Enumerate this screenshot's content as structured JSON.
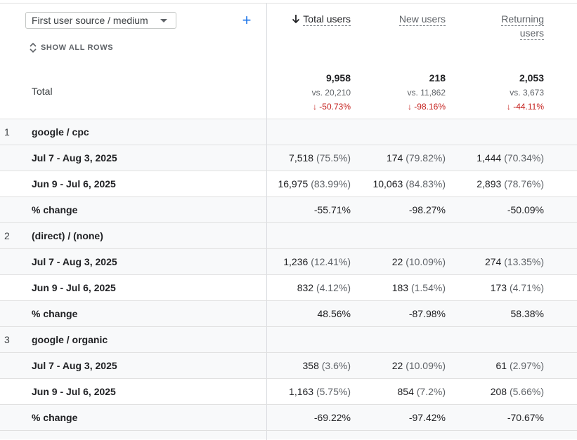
{
  "dimension": {
    "selected": "First user source / medium",
    "add_icon": "plus-icon"
  },
  "show_all_rows": "SHOW ALL ROWS",
  "columns": [
    {
      "key": "total_users",
      "label_lines": [
        "Total users"
      ],
      "sorted": true
    },
    {
      "key": "new_users",
      "label_lines": [
        "New users"
      ],
      "sorted": false
    },
    {
      "key": "returning_users",
      "label_lines": [
        "Returning",
        "users"
      ],
      "sorted": false
    }
  ],
  "totals": {
    "label": "Total",
    "values": [
      {
        "value": "9,958",
        "vs": "vs. 20,210",
        "change": "↓ -50.73%"
      },
      {
        "value": "218",
        "vs": "vs. 11,862",
        "change": "↓ -98.16%"
      },
      {
        "value": "2,053",
        "vs": "vs. 3,673",
        "change": "↓ -44.11%"
      }
    ]
  },
  "groups": [
    {
      "index": "1",
      "name": "google / cpc",
      "rows": [
        {
          "label": "Jul 7 - Aug 3, 2025",
          "cells": [
            [
              "7,518",
              "(75.5%)"
            ],
            [
              "174",
              "(79.82%)"
            ],
            [
              "1,444",
              "(70.34%)"
            ]
          ]
        },
        {
          "label": "Jun 9 - Jul 6, 2025",
          "cells": [
            [
              "16,975",
              "(83.99%)"
            ],
            [
              "10,063",
              "(84.83%)"
            ],
            [
              "2,893",
              "(78.76%)"
            ]
          ]
        },
        {
          "label": "% change",
          "cells": [
            [
              "-55.71%",
              ""
            ],
            [
              "-98.27%",
              ""
            ],
            [
              "-50.09%",
              ""
            ]
          ]
        }
      ]
    },
    {
      "index": "2",
      "name": "(direct) / (none)",
      "rows": [
        {
          "label": "Jul 7 - Aug 3, 2025",
          "cells": [
            [
              "1,236",
              "(12.41%)"
            ],
            [
              "22",
              "(10.09%)"
            ],
            [
              "274",
              "(13.35%)"
            ]
          ]
        },
        {
          "label": "Jun 9 - Jul 6, 2025",
          "cells": [
            [
              "832",
              "(4.12%)"
            ],
            [
              "183",
              "(1.54%)"
            ],
            [
              "173",
              "(4.71%)"
            ]
          ]
        },
        {
          "label": "% change",
          "cells": [
            [
              "48.56%",
              ""
            ],
            [
              "-87.98%",
              ""
            ],
            [
              "58.38%",
              ""
            ]
          ]
        }
      ]
    },
    {
      "index": "3",
      "name": "google / organic",
      "rows": [
        {
          "label": "Jul 7 - Aug 3, 2025",
          "cells": [
            [
              "358",
              "(3.6%)"
            ],
            [
              "22",
              "(10.09%)"
            ],
            [
              "61",
              "(2.97%)"
            ]
          ]
        },
        {
          "label": "Jun 9 - Jul 6, 2025",
          "cells": [
            [
              "1,163",
              "(5.75%)"
            ],
            [
              "854",
              "(7.2%)"
            ],
            [
              "208",
              "(5.66%)"
            ]
          ]
        },
        {
          "label": "% change",
          "cells": [
            [
              "-69.22%",
              ""
            ],
            [
              "-97.42%",
              ""
            ],
            [
              "-70.67%",
              ""
            ]
          ]
        }
      ]
    }
  ]
}
